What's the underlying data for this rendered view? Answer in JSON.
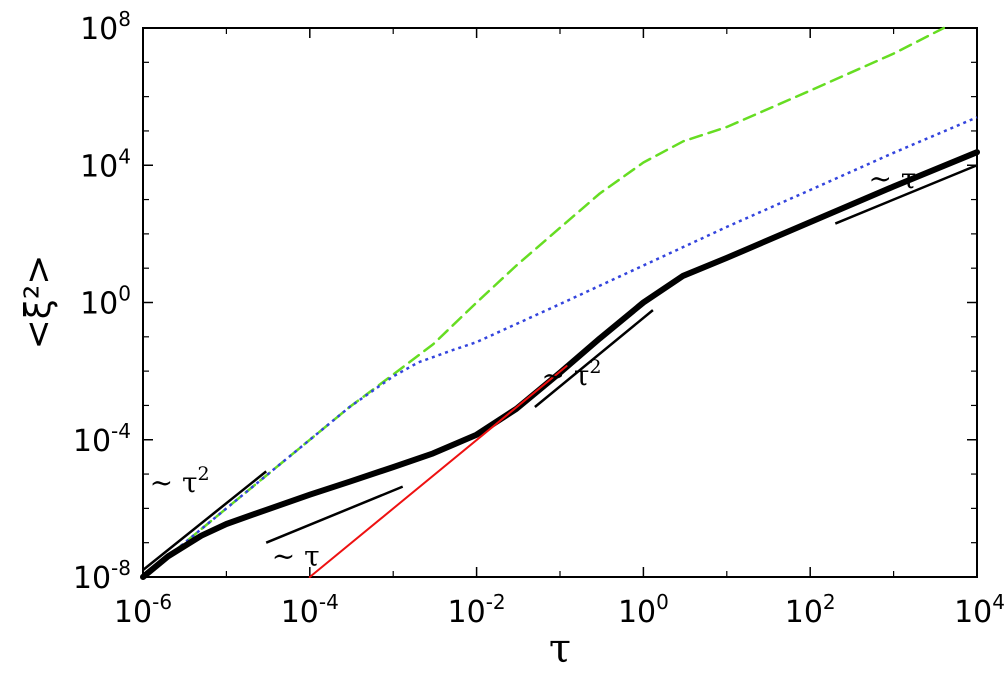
{
  "chart_data": {
    "type": "line",
    "x_scale": "log",
    "y_scale": "log",
    "xlim": [
      1e-06,
      10000.0
    ],
    "ylim": [
      1e-08,
      100000000.0
    ],
    "xlabel": "τ",
    "ylabel": "<ξ²>",
    "xticks": [
      {
        "value": 1e-06,
        "base": "10",
        "exp": "-6"
      },
      {
        "value": 0.0001,
        "base": "10",
        "exp": "-4"
      },
      {
        "value": 0.01,
        "base": "10",
        "exp": "-2"
      },
      {
        "value": 1.0,
        "base": "10",
        "exp": "0"
      },
      {
        "value": 100.0,
        "base": "10",
        "exp": "2"
      },
      {
        "value": 10000.0,
        "base": "10",
        "exp": "4"
      }
    ],
    "yticks": [
      {
        "value": 1e-08,
        "base": "10",
        "exp": "-8"
      },
      {
        "value": 0.0001,
        "base": "10",
        "exp": "-4"
      },
      {
        "value": 1.0,
        "base": "10",
        "exp": "0"
      },
      {
        "value": 10000.0,
        "base": "10",
        "exp": "4"
      },
      {
        "value": 100000000.0,
        "base": "10",
        "exp": "8"
      }
    ],
    "grid": false,
    "series": [
      {
        "style": "dashed",
        "color": "#66dd22",
        "width": 2.5,
        "x": [
          1e-06,
          3e-06,
          1e-05,
          3e-05,
          0.0001,
          0.0003,
          0.001,
          0.003,
          0.01,
          0.03,
          0.1,
          0.3,
          1,
          3,
          10,
          100,
          1000,
          4000
        ],
        "y": [
          1e-08,
          9e-08,
          1e-06,
          9e-06,
          0.0001,
          0.0009,
          0.008,
          0.06,
          1,
          12,
          150,
          1500,
          12000.0,
          50000.0,
          130000.0,
          1500000.0,
          18000000.0,
          100000000.0
        ]
      },
      {
        "style": "dotted",
        "color": "#3344dd",
        "width": 2.5,
        "x": [
          1e-06,
          3e-06,
          1e-05,
          3e-05,
          0.0001,
          0.0003,
          0.001,
          0.002,
          0.005,
          0.01,
          0.1,
          1,
          10,
          100,
          1000,
          10000.0
        ],
        "y": [
          1e-08,
          9e-08,
          1e-06,
          9e-06,
          0.0001,
          0.0009,
          0.007,
          0.018,
          0.04,
          0.07,
          0.9,
          12,
          160,
          1900,
          23000.0,
          250000.0
        ]
      },
      {
        "style": "solid",
        "color": "#000000",
        "width": 6,
        "x": [
          1e-06,
          2e-06,
          5e-06,
          1e-05,
          3e-05,
          0.0001,
          0.0003,
          0.001,
          0.003,
          0.01,
          0.03,
          0.1,
          0.3,
          1,
          3,
          10,
          100,
          1000,
          10000.0
        ],
        "y": [
          1e-08,
          4e-08,
          1.6e-07,
          3.5e-07,
          9e-07,
          2.5e-06,
          6e-06,
          1.6e-05,
          4e-05,
          0.00014,
          0.0008,
          0.009,
          0.09,
          1,
          6,
          20,
          220,
          2400,
          24000.0
        ]
      },
      {
        "style": "solid",
        "color": "#ee1111",
        "width": 2,
        "x": [
          0.0001,
          0.12
        ],
        "y": [
          1e-08,
          0.014
        ]
      }
    ],
    "guide_lines": [
      {
        "x": [
          1e-06,
          3e-05
        ],
        "y": [
          1.6e-08,
          1.2e-05
        ]
      },
      {
        "x": [
          3e-05,
          0.0013
        ],
        "y": [
          1e-07,
          4.3e-06
        ]
      },
      {
        "x": [
          0.05,
          1.3
        ],
        "y": [
          0.0009,
          0.6
        ]
      },
      {
        "x": [
          200,
          10000.0
        ],
        "y": [
          200,
          10000.0
        ]
      }
    ],
    "annotations": [
      {
        "text": "~ τ",
        "exp": "2",
        "x": 1.2e-06,
        "y": 3e-06
      },
      {
        "text": "~ τ",
        "exp": "",
        "x": 3.5e-05,
        "y": 2.2e-08
      },
      {
        "text": "~ τ",
        "exp": "2",
        "x": 0.06,
        "y": 0.004
      },
      {
        "text": "~ τ",
        "exp": "",
        "x": 500,
        "y": 2200
      }
    ]
  }
}
